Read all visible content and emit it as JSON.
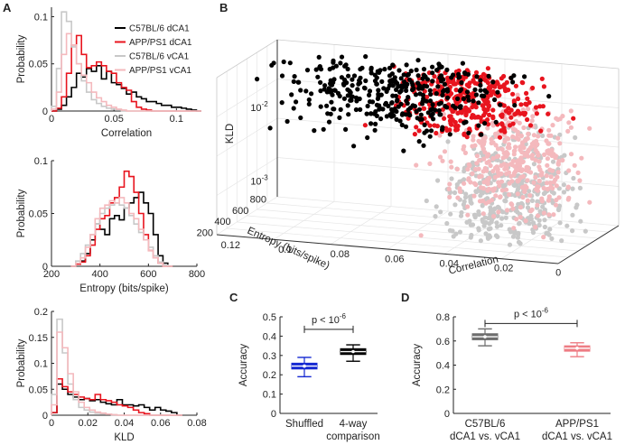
{
  "colors": {
    "black": "#000000",
    "red": "#e8141e",
    "gray": "#c8c8c8",
    "pink": "#f4b9bd",
    "blue": "#1428d2",
    "darkgray": "#6e6e6e",
    "salmon": "#ee7d84"
  },
  "panels": {
    "A": {
      "letter": "A"
    },
    "B": {
      "letter": "B"
    },
    "C": {
      "letter": "C"
    },
    "D": {
      "letter": "D"
    }
  },
  "chart_data": [
    {
      "id": "A1",
      "type": "line",
      "xlabel": "Correlation",
      "ylabel": "Probability",
      "xlim": [
        0,
        0.12
      ],
      "ylim": [
        0,
        0.11
      ],
      "xticks": [
        0,
        0.05,
        0.1
      ],
      "xticklabels": [
        "0",
        "0.05",
        "0.1"
      ],
      "yticks": [
        0,
        0.05,
        0.1
      ],
      "yticklabels": [
        "0",
        "0.05",
        "0.1"
      ],
      "x": [
        0.0,
        0.004,
        0.008,
        0.012,
        0.016,
        0.02,
        0.024,
        0.028,
        0.032,
        0.036,
        0.04,
        0.044,
        0.048,
        0.052,
        0.056,
        0.06,
        0.064,
        0.068,
        0.072,
        0.076,
        0.08,
        0.084,
        0.088,
        0.092,
        0.096,
        0.1,
        0.104,
        0.108,
        0.112,
        0.116
      ],
      "legend": [
        "C57BL/6 dCA1",
        "APP/PS1 dCA1",
        "C57BL/6 vCA1",
        "APP/PS1 vCA1"
      ],
      "series": [
        {
          "name": "C57BL/6 dCA1",
          "color": "black",
          "values": [
            0,
            0.002,
            0.006,
            0.015,
            0.025,
            0.04,
            0.036,
            0.045,
            0.042,
            0.048,
            0.034,
            0.042,
            0.03,
            0.028,
            0.024,
            0.018,
            0.02,
            0.015,
            0.013,
            0.01,
            0.01,
            0.008,
            0.006,
            0.006,
            0.004,
            0.004,
            0.003,
            0.002,
            0.001,
            0
          ]
        },
        {
          "name": "APP/PS1 dCA1",
          "color": "red",
          "values": [
            0,
            0.003,
            0.015,
            0.04,
            0.07,
            0.08,
            0.06,
            0.046,
            0.048,
            0.052,
            0.048,
            0.042,
            0.04,
            0.03,
            0.025,
            0.022,
            0.01,
            0.004,
            0.002,
            0.001,
            0,
            0,
            0,
            0,
            0,
            0,
            0,
            0,
            0,
            0
          ]
        },
        {
          "name": "C57BL/6 vCA1",
          "color": "gray",
          "values": [
            0.005,
            0.045,
            0.105,
            0.095,
            0.068,
            0.05,
            0.032,
            0.02,
            0.012,
            0.008,
            0.005,
            0.003,
            0.002,
            0.001,
            0,
            0,
            0,
            0,
            0,
            0,
            0,
            0,
            0,
            0,
            0,
            0,
            0,
            0,
            0,
            0
          ]
        },
        {
          "name": "APP/PS1 vCA1",
          "color": "pink",
          "values": [
            0.002,
            0.02,
            0.06,
            0.082,
            0.07,
            0.05,
            0.038,
            0.03,
            0.02,
            0.014,
            0.01,
            0.006,
            0.004,
            0.002,
            0.001,
            0,
            0,
            0,
            0,
            0,
            0,
            0,
            0,
            0,
            0,
            0,
            0,
            0,
            0,
            0
          ]
        }
      ]
    },
    {
      "id": "A2",
      "type": "line",
      "xlabel": "Entropy (bits/spike)",
      "ylabel": "Probability",
      "xlim": [
        200,
        800
      ],
      "ylim": [
        0,
        0.1
      ],
      "xticks": [
        200,
        400,
        600,
        800
      ],
      "xticklabels": [
        "200",
        "400",
        "600",
        "800"
      ],
      "yticks": [
        0,
        0.05,
        0.1
      ],
      "yticklabels": [
        "0",
        "0.05",
        "0.1"
      ],
      "x": [
        280,
        300,
        320,
        340,
        360,
        380,
        400,
        420,
        440,
        460,
        480,
        500,
        520,
        540,
        560,
        580,
        600,
        620,
        640,
        660,
        680
      ],
      "series": [
        {
          "name": "C57BL/6 dCA1",
          "color": "black",
          "values": [
            0,
            0.002,
            0.005,
            0.012,
            0.025,
            0.04,
            0.035,
            0.03,
            0.045,
            0.048,
            0.044,
            0.055,
            0.06,
            0.065,
            0.07,
            0.06,
            0.05,
            0.03,
            0.01,
            0.003,
            0
          ]
        },
        {
          "name": "APP/PS1 dCA1",
          "color": "red",
          "values": [
            0,
            0.002,
            0.004,
            0.01,
            0.02,
            0.035,
            0.045,
            0.048,
            0.06,
            0.065,
            0.075,
            0.09,
            0.085,
            0.07,
            0.05,
            0.03,
            0.015,
            0.008,
            0.003,
            0,
            0
          ]
        },
        {
          "name": "C57BL/6 vCA1",
          "color": "gray",
          "values": [
            0,
            0.005,
            0.012,
            0.02,
            0.03,
            0.04,
            0.05,
            0.055,
            0.058,
            0.06,
            0.058,
            0.055,
            0.048,
            0.04,
            0.032,
            0.025,
            0.018,
            0.01,
            0.004,
            0.001,
            0
          ]
        },
        {
          "name": "APP/PS1 vCA1",
          "color": "pink",
          "values": [
            0,
            0.003,
            0.008,
            0.018,
            0.03,
            0.045,
            0.055,
            0.058,
            0.062,
            0.06,
            0.065,
            0.06,
            0.05,
            0.045,
            0.035,
            0.025,
            0.015,
            0.008,
            0.003,
            0,
            0
          ]
        }
      ]
    },
    {
      "id": "A3",
      "type": "line",
      "xlabel": "KLD",
      "ylabel": "Probability",
      "xlim": [
        0,
        0.08
      ],
      "ylim": [
        0,
        0.2
      ],
      "xticks": [
        0,
        0.02,
        0.04,
        0.06,
        0.08
      ],
      "xticklabels": [
        "0",
        "0.02",
        "0.04",
        "0.06",
        "0.08"
      ],
      "yticks": [
        0,
        0.05,
        0.1,
        0.15,
        0.2
      ],
      "yticklabels": [
        "0",
        "0.05",
        "0.1",
        "0.15",
        "0.2"
      ],
      "x": [
        0,
        0.003,
        0.006,
        0.009,
        0.012,
        0.015,
        0.018,
        0.021,
        0.024,
        0.027,
        0.03,
        0.033,
        0.036,
        0.039,
        0.042,
        0.045,
        0.048,
        0.051,
        0.054,
        0.057,
        0.06,
        0.063,
        0.066,
        0.069
      ],
      "series": [
        {
          "name": "C57BL/6 dCA1",
          "color": "black",
          "values": [
            0.005,
            0.06,
            0.05,
            0.04,
            0.035,
            0.03,
            0.032,
            0.028,
            0.03,
            0.025,
            0.022,
            0.02,
            0.03,
            0.02,
            0.02,
            0.018,
            0.02,
            0.015,
            0.01,
            0.015,
            0.01,
            0.008,
            0.005,
            0
          ]
        },
        {
          "name": "APP/PS1 dCA1",
          "color": "red",
          "values": [
            0.005,
            0.07,
            0.055,
            0.045,
            0.04,
            0.035,
            0.032,
            0.03,
            0.04,
            0.03,
            0.028,
            0.025,
            0.02,
            0.018,
            0.015,
            0.01,
            0.005,
            0.003,
            0,
            0,
            0,
            0,
            0,
            0
          ]
        },
        {
          "name": "C57BL/6 vCA1",
          "color": "gray",
          "values": [
            0.04,
            0.185,
            0.12,
            0.06,
            0.03,
            0.015,
            0.01,
            0.006,
            0.004,
            0.003,
            0.002,
            0.001,
            0,
            0,
            0,
            0,
            0,
            0,
            0,
            0,
            0,
            0,
            0,
            0
          ]
        },
        {
          "name": "APP/PS1 vCA1",
          "color": "pink",
          "values": [
            0.02,
            0.16,
            0.13,
            0.08,
            0.045,
            0.025,
            0.015,
            0.01,
            0.006,
            0.004,
            0.002,
            0.001,
            0,
            0,
            0,
            0,
            0,
            0,
            0,
            0,
            0,
            0,
            0,
            0
          ]
        }
      ]
    },
    {
      "id": "B",
      "type": "scatter",
      "zlabel": "KLD",
      "ylabel": "Entropy (bits/spike)",
      "xlabel": "Correlation",
      "z_scale": "log",
      "zticklabels": [
        "10-2",
        "10-3"
      ],
      "entropy_ticklabels": [
        "200",
        "400",
        "600",
        "800"
      ],
      "correlation_ticklabels": [
        "0.12",
        "0.1",
        "0.08",
        "0.06",
        "0.04",
        "0.02",
        "0"
      ],
      "series": [
        {
          "name": "C57BL/6 vCA1",
          "color": "gray",
          "cluster": {
            "correlation": [
              0.0,
              0.05
            ],
            "entropy": [
              300,
              700
            ],
            "kld": [
              0.0005,
              0.006
            ]
          }
        },
        {
          "name": "APP/PS1 vCA1",
          "color": "pink",
          "cluster": {
            "correlation": [
              0.0,
              0.05
            ],
            "entropy": [
              300,
              700
            ],
            "kld": [
              0.001,
              0.012
            ]
          }
        },
        {
          "name": "APP/PS1 dCA1",
          "color": "red",
          "cluster": {
            "correlation": [
              0.02,
              0.07
            ],
            "entropy": [
              350,
              750
            ],
            "kld": [
              0.005,
              0.03
            ]
          }
        },
        {
          "name": "C57BL/6 dCA1",
          "color": "black",
          "cluster": {
            "correlation": [
              0.03,
              0.12
            ],
            "entropy": [
              350,
              800
            ],
            "kld": [
              0.005,
              0.03
            ]
          }
        }
      ]
    },
    {
      "id": "C",
      "type": "box",
      "ylabel": "Accuracy",
      "ylim": [
        0,
        0.5
      ],
      "yticks": [
        0,
        0.1,
        0.2,
        0.3,
        0.4,
        0.5
      ],
      "yticklabels": [
        "0",
        "0.1",
        "0.2",
        "0.3",
        "0.4",
        "0.5"
      ],
      "categories": [
        "Shuffled",
        "4-way comparison"
      ],
      "category_lines": [
        [
          "Shuffled"
        ],
        [
          "4-way",
          "comparison"
        ]
      ],
      "boxes": [
        {
          "color": "blue",
          "min": 0.19,
          "q1": 0.23,
          "median": 0.245,
          "q3": 0.26,
          "max": 0.29
        },
        {
          "color": "black",
          "min": 0.27,
          "q1": 0.305,
          "median": 0.32,
          "q3": 0.335,
          "max": 0.355
        }
      ],
      "significance": {
        "label": "p < 10",
        "exponent": "-6",
        "y": 0.435
      }
    },
    {
      "id": "D",
      "type": "box",
      "ylabel": "Accuracy",
      "ylim": [
        0,
        0.8
      ],
      "yticks": [
        0,
        0.2,
        0.4,
        0.6,
        0.8
      ],
      "yticklabels": [
        "0",
        "0.2",
        "0.4",
        "0.6",
        "0.8"
      ],
      "categories": [
        "C57BL/6 dCA1 vs. vCA1",
        "APP/PS1 dCA1 vs. vCA1"
      ],
      "category_lines": [
        [
          "C57BL/6",
          "dCA1 vs. vCA1"
        ],
        [
          "APP/PS1",
          "dCA1 vs. vCA1"
        ]
      ],
      "boxes": [
        {
          "color": "darkgray",
          "min": 0.56,
          "q1": 0.61,
          "median": 0.635,
          "q3": 0.66,
          "max": 0.7
        },
        {
          "color": "salmon",
          "min": 0.47,
          "q1": 0.515,
          "median": 0.54,
          "q3": 0.56,
          "max": 0.585
        }
      ],
      "significance": {
        "label": "p < 10",
        "exponent": "-6",
        "y": 0.745
      }
    }
  ]
}
